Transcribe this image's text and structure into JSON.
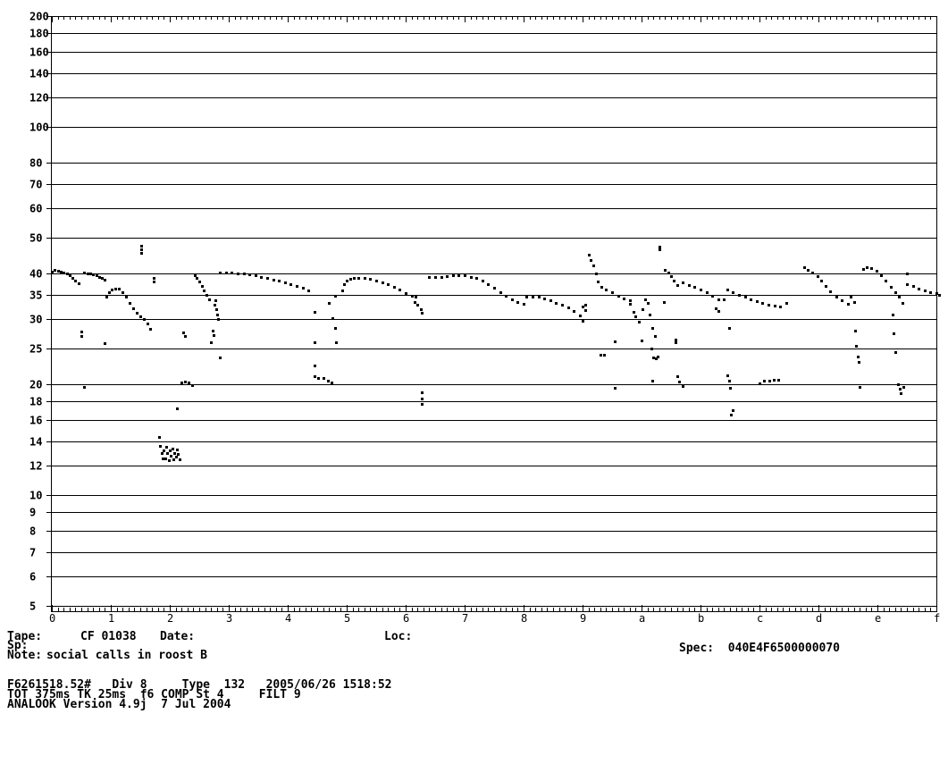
{
  "chart_data": {
    "type": "scatter",
    "title": "",
    "y_axis": {
      "scale": "log",
      "range": [
        5,
        200
      ],
      "ticks": [
        200,
        180,
        160,
        140,
        120,
        100,
        80,
        70,
        60,
        50,
        40,
        35,
        30,
        25,
        20,
        18,
        16,
        14,
        12,
        10,
        9,
        8,
        7,
        6,
        5
      ],
      "tick_labels": [
        "200",
        "180",
        "160",
        "140",
        "120",
        "100",
        "80",
        "70",
        "60",
        "50",
        "40",
        "35",
        "30",
        "25",
        "20",
        "18",
        "16",
        "14",
        "12",
        "10",
        "9",
        "8",
        "7",
        "6",
        "5"
      ],
      "grid": true
    },
    "x_axis": {
      "range": [
        0,
        15
      ],
      "tick_labels": [
        "0",
        "1",
        "2",
        "3",
        "4",
        "5",
        "6",
        "7",
        "8",
        "9",
        "a",
        "b",
        "c",
        "d",
        "e",
        "f"
      ],
      "minor_ticks_per_division": 10
    },
    "series": [
      {
        "points": [
          [
            0.0,
            40.5
          ],
          [
            0.05,
            40.8
          ],
          [
            0.1,
            40.6
          ],
          [
            0.15,
            40.5
          ],
          [
            0.2,
            40.3
          ],
          [
            0.25,
            40.0
          ],
          [
            0.3,
            39.6
          ],
          [
            0.35,
            38.8
          ],
          [
            0.4,
            38.2
          ],
          [
            0.45,
            37.6
          ]
        ]
      },
      {
        "points": [
          [
            0.55,
            40.3
          ],
          [
            0.6,
            40.1
          ],
          [
            0.65,
            39.9
          ],
          [
            0.7,
            39.7
          ],
          [
            0.75,
            39.5
          ],
          [
            0.8,
            39.1
          ],
          [
            0.85,
            38.8
          ],
          [
            0.9,
            38.4
          ]
        ]
      },
      {
        "points": [
          [
            0.92,
            34.5
          ],
          [
            0.97,
            35.6
          ],
          [
            1.02,
            36.2
          ],
          [
            1.08,
            36.4
          ],
          [
            1.14,
            36.3
          ],
          [
            1.2,
            35.6
          ],
          [
            1.26,
            34.5
          ],
          [
            1.32,
            33.3
          ],
          [
            1.38,
            32.2
          ],
          [
            1.44,
            31.3
          ],
          [
            1.5,
            30.6
          ],
          [
            1.56,
            30.0
          ],
          [
            1.62,
            29.3
          ],
          [
            1.66,
            28.2
          ]
        ]
      },
      {
        "points": [
          [
            2.42,
            39.5
          ],
          [
            2.46,
            38.8
          ],
          [
            2.5,
            38.0
          ],
          [
            2.54,
            37.0
          ],
          [
            2.58,
            36.0
          ],
          [
            2.62,
            35.0
          ],
          [
            2.66,
            34.0
          ]
        ]
      },
      {
        "points": [
          [
            2.85,
            40.2
          ],
          [
            2.95,
            40.2
          ],
          [
            3.05,
            40.2
          ],
          [
            3.15,
            40.1
          ],
          [
            3.25,
            40.0
          ],
          [
            3.35,
            39.8
          ],
          [
            3.45,
            39.5
          ],
          [
            3.55,
            39.2
          ],
          [
            3.65,
            38.9
          ],
          [
            3.75,
            38.5
          ],
          [
            3.85,
            38.2
          ],
          [
            3.95,
            37.8
          ],
          [
            4.05,
            37.4
          ],
          [
            4.15,
            37.0
          ],
          [
            4.25,
            36.5
          ],
          [
            4.35,
            36.0
          ]
        ]
      },
      {
        "points": [
          [
            4.92,
            36.0
          ],
          [
            4.96,
            37.5
          ],
          [
            5.0,
            38.2
          ],
          [
            5.06,
            38.6
          ],
          [
            5.12,
            38.8
          ],
          [
            5.2,
            38.9
          ],
          [
            5.3,
            38.8
          ],
          [
            5.4,
            38.6
          ],
          [
            5.5,
            38.3
          ],
          [
            5.6,
            37.9
          ],
          [
            5.7,
            37.4
          ],
          [
            5.8,
            36.8
          ],
          [
            5.9,
            36.1
          ],
          [
            6.0,
            35.4
          ],
          [
            6.1,
            34.8
          ],
          [
            6.17,
            34.5
          ]
        ]
      },
      {
        "points": [
          [
            6.15,
            33.5
          ],
          [
            6.2,
            32.8
          ],
          [
            6.25,
            32.0
          ],
          [
            6.28,
            31.2
          ]
        ]
      },
      {
        "points": [
          [
            6.4,
            39.2
          ],
          [
            6.5,
            39.0
          ],
          [
            6.6,
            39.1
          ],
          [
            6.7,
            39.3
          ],
          [
            6.8,
            39.5
          ],
          [
            6.9,
            39.6
          ],
          [
            7.0,
            39.5
          ],
          [
            7.1,
            39.2
          ],
          [
            7.2,
            38.8
          ],
          [
            7.3,
            38.2
          ],
          [
            7.4,
            37.5
          ],
          [
            7.5,
            36.6
          ],
          [
            7.6,
            35.6
          ],
          [
            7.7,
            34.7
          ],
          [
            7.8,
            34.0
          ],
          [
            7.9,
            33.5
          ],
          [
            8.0,
            33.1
          ]
        ]
      },
      {
        "points": [
          [
            8.05,
            34.5
          ],
          [
            8.15,
            34.6
          ],
          [
            8.25,
            34.5
          ],
          [
            8.35,
            34.2
          ],
          [
            8.45,
            33.8
          ],
          [
            8.55,
            33.3
          ],
          [
            8.65,
            32.8
          ],
          [
            8.75,
            32.3
          ],
          [
            8.85,
            31.6
          ],
          [
            8.95,
            30.7
          ],
          [
            9.0,
            29.8
          ]
        ]
      },
      {
        "points": [
          [
            9.1,
            45.0
          ],
          [
            9.14,
            43.5
          ],
          [
            9.18,
            42.0
          ],
          [
            9.22,
            40.0
          ],
          [
            9.26,
            38.0
          ],
          [
            9.32,
            36.8
          ],
          [
            9.4,
            36.2
          ],
          [
            9.5,
            35.5
          ],
          [
            9.6,
            34.8
          ],
          [
            9.7,
            34.2
          ],
          [
            9.8,
            33.8
          ]
        ]
      },
      {
        "points": [
          [
            10.4,
            41.0
          ],
          [
            10.45,
            40.2
          ],
          [
            10.5,
            39.3
          ],
          [
            10.55,
            38.3
          ],
          [
            10.6,
            37.2
          ]
        ]
      },
      {
        "points": [
          [
            10.7,
            37.8
          ],
          [
            10.8,
            37.2
          ],
          [
            10.9,
            36.8
          ],
          [
            11.0,
            36.2
          ],
          [
            11.1,
            35.5
          ],
          [
            11.2,
            34.8
          ],
          [
            11.3,
            34.0
          ]
        ]
      },
      {
        "points": [
          [
            11.45,
            36.2
          ],
          [
            11.55,
            35.6
          ],
          [
            11.65,
            35.0
          ],
          [
            11.75,
            34.5
          ],
          [
            11.85,
            34.0
          ],
          [
            11.95,
            33.6
          ],
          [
            12.05,
            33.2
          ],
          [
            12.15,
            32.9
          ],
          [
            12.25,
            32.7
          ],
          [
            12.35,
            32.6
          ],
          [
            12.45,
            33.2
          ]
        ]
      },
      {
        "points": [
          [
            12.75,
            41.5
          ],
          [
            12.82,
            41.0
          ],
          [
            12.9,
            40.2
          ],
          [
            12.98,
            39.3
          ],
          [
            13.05,
            38.2
          ],
          [
            13.12,
            36.9
          ],
          [
            13.2,
            35.7
          ],
          [
            13.3,
            34.6
          ],
          [
            13.4,
            33.8
          ],
          [
            13.5,
            33.0
          ]
        ]
      },
      {
        "points": [
          [
            13.75,
            41.2
          ],
          [
            13.82,
            41.5
          ],
          [
            13.9,
            41.3
          ],
          [
            13.98,
            40.7
          ],
          [
            14.06,
            39.6
          ],
          [
            14.14,
            38.2
          ],
          [
            14.22,
            36.8
          ],
          [
            14.3,
            35.6
          ],
          [
            14.37,
            34.5
          ],
          [
            14.42,
            33.2
          ]
        ]
      },
      {
        "points": [
          [
            14.5,
            37.3
          ],
          [
            14.6,
            36.9
          ],
          [
            14.7,
            36.4
          ],
          [
            14.8,
            36.0
          ],
          [
            14.9,
            35.6
          ],
          [
            15.0,
            35.3
          ],
          [
            15.05,
            34.9
          ]
        ]
      },
      {
        "points": [
          [
            4.45,
            21.0
          ],
          [
            4.52,
            20.8
          ],
          [
            4.6,
            20.8
          ],
          [
            4.68,
            20.5
          ],
          [
            4.74,
            20.2
          ]
        ]
      },
      {
        "points": [
          [
            2.2,
            20.2
          ],
          [
            2.26,
            20.3
          ],
          [
            2.32,
            20.2
          ],
          [
            2.38,
            19.9
          ]
        ]
      },
      {
        "points": [
          [
            12.0,
            20.1
          ],
          [
            12.08,
            20.4
          ],
          [
            12.16,
            20.5
          ],
          [
            12.24,
            20.6
          ],
          [
            12.32,
            20.6
          ]
        ]
      },
      {
        "points": [
          [
            1.82,
            14.4
          ],
          [
            1.84,
            13.6
          ],
          [
            1.86,
            13.0
          ],
          [
            1.88,
            12.6
          ],
          [
            1.9,
            13.2
          ],
          [
            1.92,
            12.6
          ],
          [
            1.94,
            13.5
          ],
          [
            1.96,
            13.0
          ],
          [
            1.98,
            12.4
          ],
          [
            2.0,
            13.2
          ],
          [
            2.02,
            12.8
          ],
          [
            2.04,
            13.4
          ],
          [
            2.06,
            12.5
          ],
          [
            2.08,
            13.0
          ],
          [
            2.1,
            12.7
          ],
          [
            2.12,
            13.3
          ],
          [
            2.14,
            12.9
          ],
          [
            2.16,
            12.5
          ]
        ]
      },
      {
        "points": [
          [
            1.52,
            47.5
          ],
          [
            1.52,
            46.5
          ],
          [
            1.52,
            45.5
          ],
          [
            1.73,
            38.8
          ],
          [
            1.73,
            38.0
          ],
          [
            0.5,
            27.8
          ],
          [
            0.5,
            27.0
          ],
          [
            0.9,
            25.8
          ],
          [
            2.22,
            27.6
          ],
          [
            2.26,
            27.0
          ],
          [
            2.75,
            32.8
          ],
          [
            2.77,
            33.8
          ],
          [
            2.79,
            32.0
          ],
          [
            2.8,
            31.0
          ],
          [
            2.82,
            30.0
          ],
          [
            2.72,
            28.0
          ],
          [
            2.74,
            27.2
          ],
          [
            2.7,
            26.0
          ],
          [
            2.85,
            23.6
          ],
          [
            0.55,
            19.7
          ],
          [
            4.45,
            31.5
          ],
          [
            4.45,
            26.0
          ],
          [
            4.45,
            22.5
          ],
          [
            4.75,
            30.2
          ],
          [
            4.8,
            28.5
          ],
          [
            4.82,
            26.0
          ],
          [
            4.7,
            33.2
          ],
          [
            4.8,
            34.8
          ],
          [
            6.28,
            19.0
          ],
          [
            6.28,
            18.3
          ],
          [
            6.28,
            17.7
          ],
          [
            9.3,
            24.0
          ],
          [
            9.36,
            24.0
          ],
          [
            9.54,
            26.2
          ],
          [
            9.54,
            19.5
          ],
          [
            2.12,
            17.2
          ],
          [
            9.8,
            33.0
          ],
          [
            9.86,
            31.5
          ],
          [
            9.9,
            30.5
          ],
          [
            9.95,
            29.5
          ],
          [
            10.02,
            32.0
          ],
          [
            10.06,
            34.0
          ],
          [
            10.1,
            33.2
          ],
          [
            10.14,
            31.0
          ],
          [
            10.18,
            28.5
          ],
          [
            10.22,
            27.0
          ],
          [
            10.0,
            26.3
          ],
          [
            10.16,
            25.0
          ],
          [
            10.18,
            20.5
          ],
          [
            10.2,
            23.7
          ],
          [
            10.24,
            23.5
          ],
          [
            10.28,
            23.8
          ],
          [
            10.3,
            47.2
          ],
          [
            10.3,
            46.4
          ],
          [
            10.38,
            33.5
          ],
          [
            10.58,
            26.5
          ],
          [
            10.58,
            26.0
          ],
          [
            10.6,
            21.0
          ],
          [
            10.64,
            20.3
          ],
          [
            10.7,
            19.8
          ],
          [
            9.05,
            31.8
          ],
          [
            9.05,
            32.8
          ],
          [
            11.25,
            32.2
          ],
          [
            11.3,
            31.6
          ],
          [
            11.4,
            34.0
          ],
          [
            11.48,
            28.5
          ],
          [
            11.45,
            21.2
          ],
          [
            11.48,
            20.4
          ],
          [
            11.5,
            19.6
          ],
          [
            11.55,
            17.0
          ],
          [
            11.52,
            16.5
          ],
          [
            14.25,
            31.0
          ],
          [
            14.28,
            27.5
          ],
          [
            14.3,
            24.5
          ],
          [
            14.35,
            20.0
          ],
          [
            14.38,
            19.4
          ],
          [
            14.4,
            18.9
          ],
          [
            14.44,
            19.7
          ],
          [
            14.5,
            40.0
          ],
          [
            13.55,
            34.6
          ],
          [
            13.6,
            33.5
          ],
          [
            13.62,
            28.0
          ],
          [
            13.64,
            25.5
          ],
          [
            13.66,
            23.8
          ],
          [
            13.68,
            23.0
          ],
          [
            13.7,
            19.7
          ],
          [
            9.0,
            32.5
          ]
        ]
      }
    ]
  },
  "footer": {
    "tape_label": "Tape:",
    "tape_value": "CF 01038",
    "date_label": "Date:",
    "loc_label": "Loc:",
    "sp_label": "Sp:",
    "spec": "Spec:  040E4F6500000070",
    "note_label": "Note:",
    "note_value": "social calls in roost B",
    "line1": "F6261518.52#   Div 8     Type  132   2005/06/26 1518:52",
    "line2": "TOT 375ms TK 25ms  f6 COMP St 4     FILT 9",
    "line3": "ANALOOK Version 4.9j  7 Jul 2004"
  }
}
